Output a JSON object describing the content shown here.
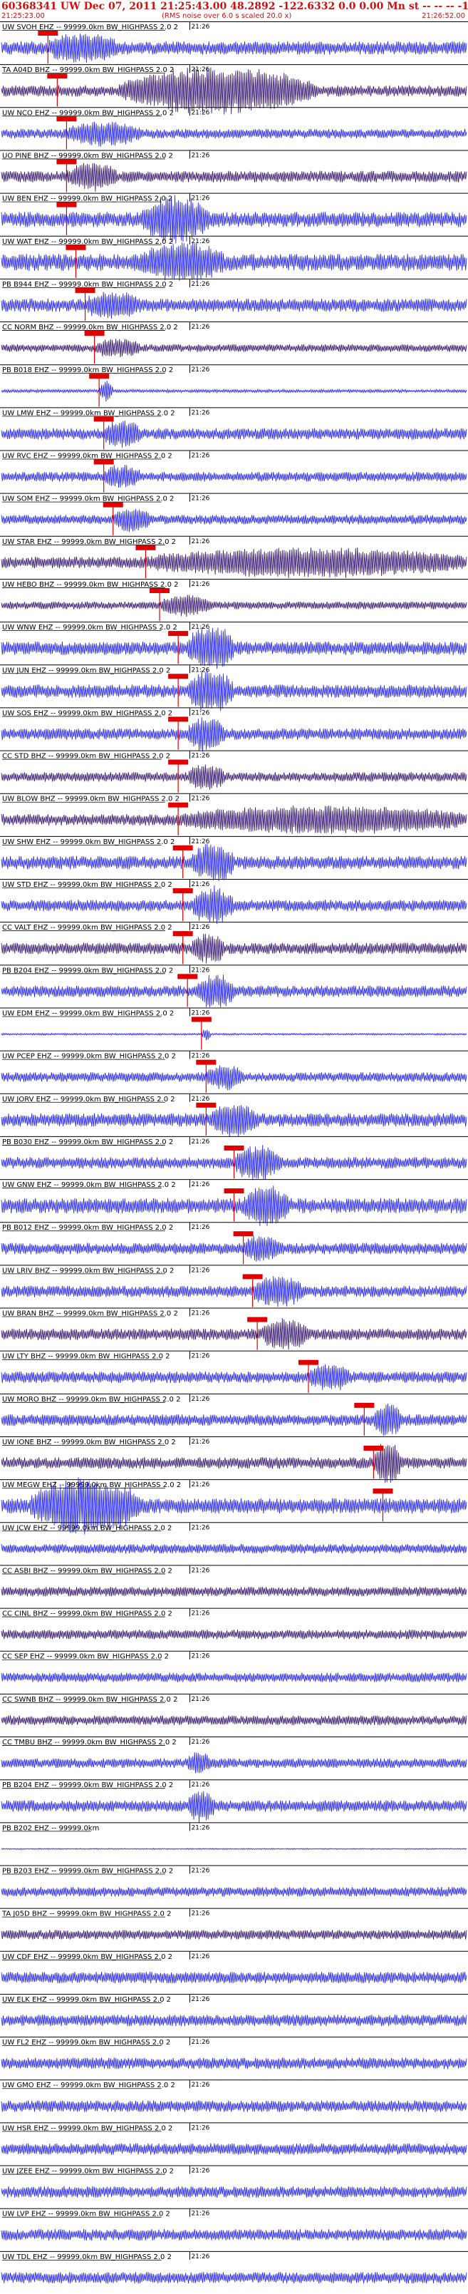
{
  "header": {
    "title": "60368341 UW Dec 07, 2011 21:25:43.00   48.2892  -122.6332   0.0 0.00 Mn st -- -- --  -1",
    "start_time": "21:25:23.00",
    "note": "(RMS noise over 6.0 s scaled 20.0 x)",
    "end_time": "21:26:52.00"
  },
  "colors": {
    "trace_blue": "#1a1aff",
    "trace_dark": "#2a0a6a",
    "pick_red": "#e00000",
    "text_red": "#d01010",
    "label": "#000000"
  },
  "chart_data": {
    "type": "line",
    "title": "60368341 UW Dec 07, 2011 21:25:43.00   48.2892  -122.6332   0.0 0.00 Mn st -- -- --  -1",
    "x_axis": {
      "start": "21:25:23.00",
      "end": "21:26:52.00",
      "tick_label": "21:26"
    },
    "series": [
      {
        "name": "UW SVOH EHZ -- 99999.0km BW_HIGHPASS  2.0  2",
        "amplitude": 0.35,
        "color": "blue",
        "pick": 0.1,
        "burst_start": 0.1,
        "burst_end": 0.25,
        "burst_amp": 0.5
      },
      {
        "name": "TA A04D BHZ -- 99999.0km BW_HIGHPASS  2.0  2",
        "amplitude": 0.3,
        "color": "dark",
        "pick": 0.12,
        "burst_start": 0.25,
        "burst_end": 0.68,
        "burst_amp": 1.0
      },
      {
        "name": "UW NCO EHZ -- 99999.0km BW_HIGHPASS  2.0  2",
        "amplitude": 0.25,
        "color": "blue",
        "pick": 0.14,
        "burst_start": 0.14,
        "burst_end": 0.3,
        "burst_amp": 0.45
      },
      {
        "name": "UO PINE BHZ -- 99999.0km BW_HIGHPASS  2.0  2",
        "amplitude": 0.3,
        "color": "dark",
        "pick": 0.14,
        "burst_start": 0.14,
        "burst_end": 0.25,
        "burst_amp": 0.5
      },
      {
        "name": "UW BEN EHZ -- 99999.0km BW_HIGHPASS  2.0  2",
        "amplitude": 0.4,
        "color": "blue",
        "pick": 0.14,
        "burst_start": 0.3,
        "burst_end": 0.45,
        "burst_amp": 0.9
      },
      {
        "name": "UW WAT EHZ -- 99999.0km BW_HIGHPASS  2.0  2",
        "amplitude": 0.45,
        "color": "blue",
        "pick": 0.16,
        "burst_start": 0.3,
        "burst_end": 0.48,
        "burst_amp": 0.7
      },
      {
        "name": "PB B944 EHZ -- 99999.0km BW_HIGHPASS  2.0  2",
        "amplitude": 0.35,
        "color": "blue",
        "pick": 0.18,
        "burst_start": 0.18,
        "burst_end": 0.3,
        "burst_amp": 0.4
      },
      {
        "name": "CC NORM BHZ -- 99999.0km BW_HIGHPASS  2.0  2",
        "amplitude": 0.2,
        "color": "dark",
        "pick": 0.2,
        "burst_start": 0.2,
        "burst_end": 0.3,
        "burst_amp": 0.35
      },
      {
        "name": "PB B018 EHZ -- 99999.0km BW_HIGHPASS  2.0  2",
        "amplitude": 0.08,
        "color": "blue",
        "pick": 0.21,
        "burst_start": 0.21,
        "burst_end": 0.24,
        "burst_amp": 0.5
      },
      {
        "name": "UW LMW EHZ -- 99999.0km BW_HIGHPASS  2.0  2",
        "amplitude": 0.3,
        "color": "blue",
        "pick": 0.22,
        "burst_start": 0.22,
        "burst_end": 0.3,
        "burst_amp": 0.5
      },
      {
        "name": "UW RVC EHZ -- 99999.0km BW_HIGHPASS  2.0  2",
        "amplitude": 0.25,
        "color": "blue",
        "pick": 0.22,
        "burst_start": 0.22,
        "burst_end": 0.3,
        "burst_amp": 0.45
      },
      {
        "name": "UW SOM EHZ -- 99999.0km BW_HIGHPASS  2.0  2",
        "amplitude": 0.25,
        "color": "blue",
        "pick": 0.24,
        "burst_start": 0.24,
        "burst_end": 0.32,
        "burst_amp": 0.45
      },
      {
        "name": "UW STAR EHZ -- 99999.0km BW_HIGHPASS  2.0  2",
        "amplitude": 0.3,
        "color": "dark",
        "pick": 0.31,
        "burst_start": 0.31,
        "burst_end": 1.0,
        "burst_amp": 0.55
      },
      {
        "name": "UW HEBO BHZ -- 99999.0km BW_HIGHPASS  2.0  2",
        "amplitude": 0.2,
        "color": "dark",
        "pick": 0.34,
        "burst_start": 0.34,
        "burst_end": 0.45,
        "burst_amp": 0.4
      },
      {
        "name": "UW WNW EHZ -- 99999.0km BW_HIGHPASS  2.0  2",
        "amplitude": 0.35,
        "color": "blue",
        "pick": 0.38,
        "burst_start": 0.4,
        "burst_end": 0.5,
        "burst_amp": 1.0
      },
      {
        "name": "UW JUN EHZ -- 99999.0km BW_HIGHPASS  2.0  2",
        "amplitude": 0.35,
        "color": "blue",
        "pick": 0.38,
        "burst_start": 0.4,
        "burst_end": 0.5,
        "burst_amp": 0.9
      },
      {
        "name": "UW SOS EHZ -- 99999.0km BW_HIGHPASS  2.0  2",
        "amplitude": 0.3,
        "color": "blue",
        "pick": 0.38,
        "burst_start": 0.4,
        "burst_end": 0.48,
        "burst_amp": 0.7
      },
      {
        "name": "CC STD BHZ -- 99999.0km BW_HIGHPASS  2.0  2",
        "amplitude": 0.25,
        "color": "dark",
        "pick": 0.38,
        "burst_start": 0.4,
        "burst_end": 0.48,
        "burst_amp": 0.5
      },
      {
        "name": "UW BLOW BHZ -- 99999.0km BW_HIGHPASS  2.0  2",
        "amplitude": 0.3,
        "color": "dark",
        "pick": 0.38,
        "burst_start": 0.38,
        "burst_end": 1.0,
        "burst_amp": 0.5
      },
      {
        "name": "UW SHW EHZ -- 99999.0km BW_HIGHPASS  2.0  2",
        "amplitude": 0.35,
        "color": "blue",
        "pick": 0.39,
        "burst_start": 0.41,
        "burst_end": 0.5,
        "burst_amp": 0.8
      },
      {
        "name": "UW STD EHZ -- 99999.0km BW_HIGHPASS  2.0  2",
        "amplitude": 0.3,
        "color": "blue",
        "pick": 0.39,
        "burst_start": 0.41,
        "burst_end": 0.5,
        "burst_amp": 0.8
      },
      {
        "name": "CC VALT EHZ -- 99999.0km BW_HIGHPASS  2.0  2",
        "amplitude": 0.3,
        "color": "dark",
        "pick": 0.39,
        "burst_start": 0.41,
        "burst_end": 0.48,
        "burst_amp": 0.6
      },
      {
        "name": "PB B204 EHZ -- 99999.0km BW_HIGHPASS  2.0  2",
        "amplitude": 0.3,
        "color": "blue",
        "pick": 0.4,
        "burst_start": 0.42,
        "burst_end": 0.5,
        "burst_amp": 0.7
      },
      {
        "name": "UW EDM EHZ -- 99999.0km BW_HIGHPASS  2.0  2",
        "amplitude": 0.05,
        "color": "blue",
        "pick": 0.43,
        "burst_start": 0.43,
        "burst_end": 0.45,
        "burst_amp": 0.3
      },
      {
        "name": "UW PCEP EHZ -- 99999.0km BW_HIGHPASS  2.0  2",
        "amplitude": 0.25,
        "color": "blue",
        "pick": 0.44,
        "burst_start": 0.44,
        "burst_end": 0.52,
        "burst_amp": 0.5
      },
      {
        "name": "UW JORV EHZ -- 99999.0km BW_HIGHPASS  2.0  2",
        "amplitude": 0.35,
        "color": "blue",
        "pick": 0.44,
        "burst_start": 0.45,
        "burst_end": 0.55,
        "burst_amp": 0.6
      },
      {
        "name": "PB B030 EHZ -- 99999.0km BW_HIGHPASS  2.0  2",
        "amplitude": 0.3,
        "color": "blue",
        "pick": 0.5,
        "burst_start": 0.5,
        "burst_end": 0.6,
        "burst_amp": 0.7
      },
      {
        "name": "UW GNW EHZ -- 99999.0km BW_HIGHPASS  2.0  2",
        "amplitude": 0.4,
        "color": "blue",
        "pick": 0.5,
        "burst_start": 0.52,
        "burst_end": 0.62,
        "burst_amp": 0.8
      },
      {
        "name": "PB B012 EHZ -- 99999.0km BW_HIGHPASS  2.0  2",
        "amplitude": 0.3,
        "color": "blue",
        "pick": 0.52,
        "burst_start": 0.52,
        "burst_end": 0.6,
        "burst_amp": 0.5
      },
      {
        "name": "UW LRIV BHZ -- 99999.0km BW_HIGHPASS  2.0  2",
        "amplitude": 0.3,
        "color": "blue",
        "pick": 0.54,
        "burst_start": 0.54,
        "burst_end": 0.65,
        "burst_amp": 0.6
      },
      {
        "name": "UW BRAN BHZ -- 99999.0km BW_HIGHPASS  2.0  2",
        "amplitude": 0.3,
        "color": "dark",
        "pick": 0.55,
        "burst_start": 0.56,
        "burst_end": 0.66,
        "burst_amp": 0.6
      },
      {
        "name": "UW LTY BHZ -- 99999.0km BW_HIGHPASS  2.0  2",
        "amplitude": 0.3,
        "color": "blue",
        "pick": 0.66,
        "burst_start": 0.66,
        "burst_end": 0.75,
        "burst_amp": 0.5
      },
      {
        "name": "UW MORO BHZ -- 99999.0km BW_HIGHPASS  2.0  2",
        "amplitude": 0.3,
        "color": "blue",
        "pick": 0.78,
        "burst_start": 0.8,
        "burst_end": 0.86,
        "burst_amp": 0.7
      },
      {
        "name": "UW IONE BHZ -- 99999.0km BW_HIGHPASS  2.0  2",
        "amplitude": 0.3,
        "color": "dark",
        "pick": 0.8,
        "burst_start": 0.8,
        "burst_end": 0.86,
        "burst_amp": 0.9
      },
      {
        "name": "UW MEGW EHZ -- 99999.0km BW_HIGHPASS  2.0  2",
        "amplitude": 0.4,
        "color": "blue",
        "pick": 0.82,
        "burst_start": 0.06,
        "burst_end": 0.3,
        "burst_amp": 1.2
      },
      {
        "name": "UW JCW EHZ -- 99999.0km BW_HIGHPASS  2.0  2",
        "amplitude": 0.25,
        "color": "blue",
        "pick": null,
        "burst_start": 0,
        "burst_end": 0,
        "burst_amp": 0
      },
      {
        "name": "CC ASBI BHZ -- 99999.0km BW_HIGHPASS  2.0  2",
        "amplitude": 0.25,
        "color": "dark",
        "pick": null,
        "burst_start": 0,
        "burst_end": 0,
        "burst_amp": 0
      },
      {
        "name": "CC CINL BHZ -- 99999.0km BW_HIGHPASS  2.0  2",
        "amplitude": 0.25,
        "color": "dark",
        "pick": null,
        "burst_start": 0,
        "burst_end": 0,
        "burst_amp": 0
      },
      {
        "name": "CC SEP EHZ -- 99999.0km BW_HIGHPASS  2.0  2",
        "amplitude": 0.25,
        "color": "blue",
        "pick": null,
        "burst_start": 0,
        "burst_end": 0,
        "burst_amp": 0
      },
      {
        "name": "CC SWNB BHZ -- 99999.0km BW_HIGHPASS  2.0  2",
        "amplitude": 0.25,
        "color": "dark",
        "pick": null,
        "burst_start": 0,
        "burst_end": 0,
        "burst_amp": 0
      },
      {
        "name": "CC TMBU BHZ -- 99999.0km BW_HIGHPASS  2.0  2",
        "amplitude": 0.25,
        "color": "blue",
        "pick": null,
        "burst_start": 0.4,
        "burst_end": 0.45,
        "burst_amp": 0.4
      },
      {
        "name": "PB B204 EHZ -- 99999.0km BW_HIGHPASS  2.0  2",
        "amplitude": 0.3,
        "color": "blue",
        "pick": null,
        "burst_start": 0.4,
        "burst_end": 0.46,
        "burst_amp": 0.6
      },
      {
        "name": "PB B202 EHZ -- 99999.0km",
        "amplitude": 0.03,
        "color": "blue",
        "pick": null,
        "burst_start": 0,
        "burst_end": 0,
        "burst_amp": 0
      },
      {
        "name": "PB B203 EHZ -- 99999.0km BW_HIGHPASS  2.0  2",
        "amplitude": 0.25,
        "color": "blue",
        "pick": null,
        "burst_start": 0,
        "burst_end": 0,
        "burst_amp": 0
      },
      {
        "name": "TA J05D BHZ -- 99999.0km BW_HIGHPASS  2.0  2",
        "amplitude": 0.25,
        "color": "dark",
        "pick": null,
        "burst_start": 0,
        "burst_end": 0,
        "burst_amp": 0
      },
      {
        "name": "UW CDF EHZ -- 99999.0km BW_HIGHPASS  2.0  2",
        "amplitude": 0.3,
        "color": "blue",
        "pick": null,
        "burst_start": 0,
        "burst_end": 0,
        "burst_amp": 0
      },
      {
        "name": "UW ELK EHZ -- 99999.0km BW_HIGHPASS  2.0  2",
        "amplitude": 0.3,
        "color": "blue",
        "pick": null,
        "burst_start": 0,
        "burst_end": 0,
        "burst_amp": 0
      },
      {
        "name": "UW FL2 EHZ -- 99999.0km BW_HIGHPASS  2.0  2",
        "amplitude": 0.3,
        "color": "blue",
        "pick": null,
        "burst_start": 0,
        "burst_end": 0,
        "burst_amp": 0
      },
      {
        "name": "UW GMO EHZ -- 99999.0km BW_HIGHPASS  2.0  2",
        "amplitude": 0.3,
        "color": "blue",
        "pick": null,
        "burst_start": 0,
        "burst_end": 0,
        "burst_amp": 0
      },
      {
        "name": "UW HSR EHZ -- 99999.0km BW_HIGHPASS  2.0  2",
        "amplitude": 0.3,
        "color": "blue",
        "pick": null,
        "burst_start": 0,
        "burst_end": 0,
        "burst_amp": 0
      },
      {
        "name": "UW JZEE EHZ -- 99999.0km BW_HIGHPASS  2.0  2",
        "amplitude": 0.3,
        "color": "blue",
        "pick": null,
        "burst_start": 0,
        "burst_end": 0,
        "burst_amp": 0
      },
      {
        "name": "UW LVP EHZ -- 99999.0km BW_HIGHPASS  2.0  2",
        "amplitude": 0.3,
        "color": "blue",
        "pick": null,
        "burst_start": 0,
        "burst_end": 0,
        "burst_amp": 0
      },
      {
        "name": "UW TDL EHZ -- 99999.0km BW_HIGHPASS  2.0  2",
        "amplitude": 0.3,
        "color": "blue",
        "pick": null,
        "burst_start": 0,
        "burst_end": 0,
        "burst_amp": 0
      }
    ]
  }
}
